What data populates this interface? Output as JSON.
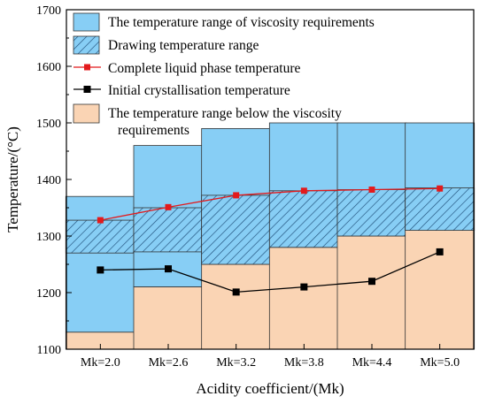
{
  "chart_data": {
    "type": "bar",
    "title": "",
    "xlabel": "Acidity coefficient/(Mk)",
    "ylabel": "Temperature/(°C)",
    "categories": [
      "Mk=2.0",
      "Mk=2.6",
      "Mk=3.2",
      "Mk=3.8",
      "Mk=4.4",
      "Mk=5.0"
    ],
    "ylim": [
      1100,
      1700
    ],
    "yticks": [
      1100,
      1200,
      1300,
      1400,
      1500,
      1600,
      1700
    ],
    "grid": false,
    "legend_position": "top-left",
    "colors": {
      "viscosity_range": "#87cef5",
      "below_viscosity": "#fad4b4",
      "hatch_line": "#1f4e79",
      "liquid_line": "#e31a1c",
      "crystal_line": "#000000"
    },
    "bar_stacks": {
      "below_top": [
        1130,
        1210,
        1250,
        1280,
        1300,
        1310
      ],
      "viscosity_top": [
        1370,
        1460,
        1490,
        1500,
        1500,
        1500
      ]
    },
    "drawing_range": {
      "low": [
        1270,
        1272,
        1250,
        1280,
        1300,
        1310
      ],
      "high": [
        1328,
        1350,
        1372,
        1380,
        1382,
        1385
      ]
    },
    "series": [
      {
        "name": "Complete liquid phase temperature",
        "values": [
          1328,
          1351,
          1372,
          1380,
          1382,
          1384
        ]
      },
      {
        "name": "Initial crystallisation temperature",
        "values": [
          1240,
          1242,
          1201,
          1210,
          1220,
          1272
        ]
      }
    ],
    "legend": [
      "The temperature range of viscosity requirements",
      "Drawing temperature range",
      "Complete liquid phase temperature",
      "Initial crystallisation temperature",
      "The temperature range below the viscosity requirements"
    ]
  }
}
